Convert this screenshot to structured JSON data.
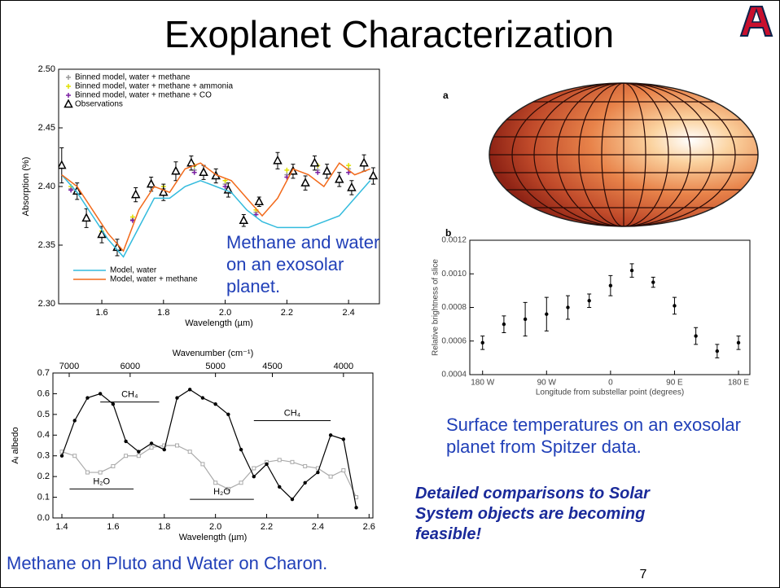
{
  "slide": {
    "title": "Exoplanet Characterization",
    "page_number": "7",
    "map_panel_label": "a"
  },
  "captions": {
    "transit": "Methane and water on an exosolar planet.",
    "spitzer": "Surface temperatures on an exosolar planet from Spitzer data.",
    "conclusion": "Detailed comparisons to Solar System objects are becoming feasible!",
    "pluto": "Methane on Pluto and Water on Charon."
  },
  "chart_data": [
    {
      "type": "line",
      "x_label": "Wavelength (µm)",
      "y_label": "Absorption (%)",
      "xlim": [
        1.46,
        2.5
      ],
      "ylim": [
        2.3,
        2.5
      ],
      "xticks": [
        1.6,
        1.8,
        {
          "value": 2,
          "label": "2.0"
        },
        2.2,
        2.4
      ],
      "yticks": [
        {
          "value": 2.3,
          "label": "2.30"
        },
        2.35,
        {
          "value": 2.4,
          "label": "2.40"
        },
        2.45,
        {
          "value": 2.5,
          "label": "2.50"
        }
      ],
      "x": [
        1.47,
        1.52,
        1.57,
        1.62,
        1.67,
        1.72,
        1.77,
        1.82,
        1.87,
        1.92,
        1.97,
        2.02,
        2.07,
        2.12,
        2.17,
        2.22,
        2.27,
        2.32,
        2.37,
        2.42,
        2.47
      ],
      "series": [
        {
          "name": "Binned model, water + methane",
          "style": "plus",
          "color": "#999999",
          "legend": "upper left",
          "x": [
            1.5,
            1.6,
            1.7,
            1.8,
            1.9,
            2.0,
            2.1,
            2.2,
            2.3,
            2.4
          ],
          "values": [
            2.398,
            2.36,
            2.372,
            2.398,
            2.414,
            2.402,
            2.378,
            2.41,
            2.414,
            2.415
          ]
        },
        {
          "name": "Binned model, water + methane + ammonia",
          "style": "plus",
          "color": "#e0e000",
          "legend": "upper left",
          "x": [
            1.5,
            1.6,
            1.7,
            1.8,
            1.9,
            2.0,
            2.1,
            2.2,
            2.3,
            2.4
          ],
          "values": [
            2.4,
            2.362,
            2.374,
            2.4,
            2.418,
            2.405,
            2.38,
            2.414,
            2.418,
            2.418
          ]
        },
        {
          "name": "Binned model, water + methane + CO",
          "style": "plus",
          "color": "#7a1fa2",
          "legend": "upper left",
          "x": [
            1.5,
            1.6,
            1.7,
            1.8,
            1.9,
            2.0,
            2.1,
            2.2,
            2.3,
            2.4
          ],
          "values": [
            2.397,
            2.358,
            2.371,
            2.396,
            2.412,
            2.4,
            2.376,
            2.408,
            2.412,
            2.412
          ]
        },
        {
          "name": "Observations",
          "style": "triangle",
          "color": "#000000",
          "legend": "upper left",
          "x": [
            1.47,
            1.52,
            1.55,
            1.6,
            1.65,
            1.71,
            1.76,
            1.8,
            1.84,
            1.89,
            1.93,
            1.97,
            2.01,
            2.06,
            2.11,
            2.17,
            2.22,
            2.26,
            2.29,
            2.33,
            2.37,
            2.41,
            2.45,
            2.48
          ],
          "values": [
            2.418,
            2.396,
            2.373,
            2.359,
            2.348,
            2.393,
            2.402,
            2.395,
            2.413,
            2.42,
            2.412,
            2.409,
            2.397,
            2.371,
            2.387,
            2.422,
            2.413,
            2.403,
            2.42,
            2.413,
            2.406,
            2.399,
            2.42,
            2.409
          ],
          "errors": [
            0.015,
            0.007,
            0.008,
            0.007,
            0.007,
            0.006,
            0.006,
            0.007,
            0.008,
            0.006,
            0.006,
            0.006,
            0.006,
            0.005,
            0.004,
            0.007,
            0.006,
            0.006,
            0.006,
            0.006,
            0.006,
            0.006,
            0.007,
            0.007
          ]
        },
        {
          "name": "Model, water",
          "style": "line",
          "color": "#33bbdd",
          "legend": "lower left",
          "values": [
            2.41,
            2.395,
            2.375,
            2.355,
            2.34,
            2.365,
            2.39,
            2.39,
            2.4,
            2.405,
            2.4,
            2.395,
            2.38,
            2.37,
            2.365,
            2.365,
            2.365,
            2.37,
            2.375,
            2.39,
            2.405
          ]
        },
        {
          "name": "Model, water + methane",
          "style": "line",
          "color": "#f26a1b",
          "legend": "lower left",
          "values": [
            2.41,
            2.4,
            2.38,
            2.36,
            2.345,
            2.38,
            2.4,
            2.395,
            2.415,
            2.42,
            2.41,
            2.405,
            2.39,
            2.375,
            2.39,
            2.415,
            2.41,
            2.4,
            2.42,
            2.41,
            2.415
          ]
        }
      ]
    },
    {
      "type": "line",
      "x_label": "Wavelength (µm)",
      "y_label": "Aᵢ albedo",
      "x2_label": "Wavenumber (cm⁻¹)",
      "xlim": [
        1.365,
        2.615
      ],
      "ylim": [
        0,
        0.7
      ],
      "xticks": [
        1.4,
        1.6,
        1.8,
        {
          "value": 2,
          "label": "2.0"
        },
        2.2,
        2.4,
        2.6
      ],
      "yticks": [
        {
          "value": 0,
          "label": "0.0"
        },
        0.1,
        0.2,
        0.3,
        0.4,
        0.5,
        0.6,
        0.7
      ],
      "x2ticks": [
        7000,
        6000,
        5000,
        4500,
        4000
      ],
      "x": [
        1.4,
        1.45,
        1.5,
        1.55,
        1.6,
        1.65,
        1.7,
        1.75,
        1.8,
        1.85,
        1.9,
        1.95,
        2.0,
        2.05,
        2.1,
        2.15,
        2.2,
        2.25,
        2.3,
        2.35,
        2.4,
        2.45,
        2.5,
        2.55
      ],
      "series": [
        {
          "style": "line",
          "marker": "square",
          "color": "#aaaaaa",
          "values": [
            0.32,
            0.3,
            0.22,
            0.22,
            0.25,
            0.3,
            0.3,
            0.34,
            0.35,
            0.35,
            0.32,
            0.26,
            0.17,
            0.14,
            0.17,
            0.24,
            0.27,
            0.28,
            0.27,
            0.25,
            0.24,
            0.2,
            0.23,
            0.1
          ]
        },
        {
          "style": "line",
          "marker": "dot",
          "color": "#000000",
          "values": [
            0.3,
            0.47,
            0.58,
            0.6,
            0.55,
            0.37,
            0.32,
            0.36,
            0.33,
            0.58,
            0.62,
            0.58,
            0.55,
            0.5,
            0.33,
            0.2,
            0.26,
            0.15,
            0.09,
            0.17,
            0.22,
            0.4,
            0.38,
            0.05
          ]
        }
      ],
      "annotations": [
        {
          "text": "CH₄",
          "x": [
            1.55,
            1.78
          ],
          "y": 0.56
        },
        {
          "text": "CH₄",
          "x": [
            2.15,
            2.45
          ],
          "y": 0.47
        },
        {
          "text": "H₂O",
          "x": [
            1.43,
            1.68
          ],
          "y": 0.14
        },
        {
          "text": "H₂O",
          "x": [
            1.9,
            2.15
          ],
          "y": 0.09
        }
      ]
    },
    {
      "type": "scatter",
      "panel_label": "b",
      "x_label": "Longitude from substellar point (degrees)",
      "y_label": "Relative brightness of slice",
      "xlim": [
        -198,
        196
      ],
      "ylim": [
        0.0004,
        0.0012
      ],
      "xticks": [
        {
          "value": -180,
          "label": "180 W"
        },
        {
          "value": -90,
          "label": "90 W"
        },
        0,
        {
          "value": 90,
          "label": "90 E"
        },
        {
          "value": 180,
          "label": "180 E"
        }
      ],
      "yticks": [
        0.0004,
        0.0006,
        0.0008,
        {
          "value": 0.001,
          "label": "0.0010"
        },
        0.0012
      ],
      "series": [
        {
          "style": "dot",
          "color": "#000000",
          "x": [
            -180,
            -150,
            -120,
            -90,
            -60,
            -30,
            0,
            30,
            60,
            90,
            120,
            150,
            180
          ],
          "values": [
            0.00059,
            0.0007,
            0.00073,
            0.00076,
            0.0008,
            0.00084,
            0.00093,
            0.00102,
            0.00095,
            0.00081,
            0.00063,
            0.00054,
            0.00059
          ],
          "errors": [
            4e-05,
            5e-05,
            0.0001,
            0.0001,
            7e-05,
            4e-05,
            6e-05,
            4e-05,
            3e-05,
            5e-05,
            5e-05,
            4e-05,
            4e-05
          ]
        }
      ]
    }
  ]
}
